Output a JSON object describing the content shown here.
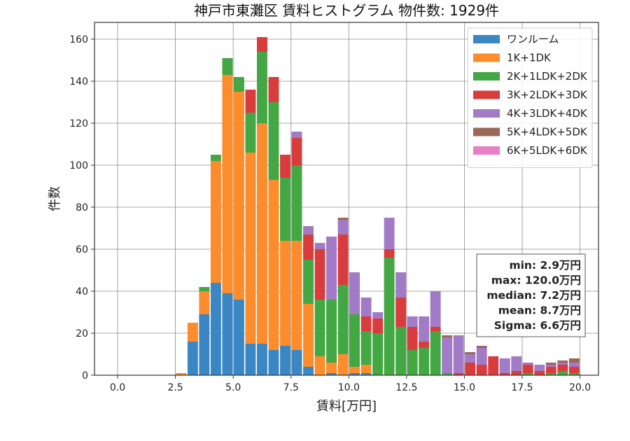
{
  "chart_data": {
    "type": "bar",
    "stacked": true,
    "title": "神戸市東灘区 賃料ヒストグラム  物件数: 1929件",
    "xlabel": "賃料[万円]",
    "ylabel": "件数",
    "xlim": [
      -1.0,
      20.8
    ],
    "ylim": [
      0,
      168
    ],
    "xticks": [
      0.0,
      2.5,
      5.0,
      7.5,
      10.0,
      12.5,
      15.0,
      17.5,
      20.0
    ],
    "xtick_labels": [
      "0.0",
      "2.5",
      "5.0",
      "7.5",
      "10.0",
      "12.5",
      "15.0",
      "17.5",
      "20.0"
    ],
    "yticks": [
      0,
      20,
      40,
      60,
      80,
      100,
      120,
      140,
      160
    ],
    "ytick_labels": [
      "0",
      "20",
      "40",
      "60",
      "80",
      "100",
      "120",
      "140",
      "160"
    ],
    "grid": true,
    "legend_position": "top-right",
    "bin_width": 0.5,
    "bins": [
      0.0,
      0.5,
      1.0,
      1.5,
      2.0,
      2.5,
      3.0,
      3.5,
      4.0,
      4.5,
      5.0,
      5.5,
      6.0,
      6.5,
      7.0,
      7.5,
      8.0,
      8.5,
      9.0,
      9.5,
      10.0,
      10.5,
      11.0,
      11.5,
      12.0,
      12.5,
      13.0,
      13.5,
      14.0,
      14.5,
      15.0,
      15.5,
      16.0,
      16.5,
      17.0,
      17.5,
      18.0,
      18.5,
      19.0,
      19.5
    ],
    "series": [
      {
        "name": "ワンルーム",
        "color": "#3a87c4",
        "values": [
          0,
          0,
          0,
          0,
          0,
          0,
          16,
          29,
          44,
          39,
          36,
          15,
          15,
          12,
          14,
          12,
          4,
          0,
          1,
          0,
          1,
          1,
          0,
          0,
          0,
          0,
          0,
          0,
          0,
          0,
          0,
          0,
          0,
          0,
          0,
          0,
          0,
          0,
          0,
          0
        ]
      },
      {
        "name": "1K+1DK",
        "color": "#fc8c2c",
        "values": [
          0,
          0,
          0,
          0,
          0,
          1,
          9,
          11,
          58,
          104,
          99,
          91,
          105,
          81,
          50,
          52,
          30,
          9,
          5,
          10,
          3,
          4,
          0,
          0,
          0,
          0,
          0,
          0,
          0,
          0,
          0,
          0,
          0,
          0,
          0,
          0,
          0,
          0,
          0,
          0
        ]
      },
      {
        "name": "2K+1LDK+2DK",
        "color": "#43a843",
        "values": [
          0,
          0,
          0,
          0,
          0,
          0,
          0,
          2,
          3,
          8,
          7,
          19,
          34,
          37,
          30,
          36,
          21,
          27,
          30,
          33,
          25,
          16,
          20,
          56,
          23,
          12,
          13,
          21,
          1,
          0,
          0,
          0,
          0,
          0,
          0,
          1,
          0,
          1,
          2,
          1
        ]
      },
      {
        "name": "3K+2LDK+3DK",
        "color": "#d93c3c",
        "values": [
          0,
          0,
          0,
          0,
          0,
          0,
          0,
          0,
          0,
          0,
          0,
          11,
          7,
          12,
          11,
          13,
          12,
          24,
          0,
          24,
          0,
          7,
          7,
          4,
          14,
          11,
          3,
          2,
          0,
          1,
          6,
          5,
          9,
          1,
          2,
          4,
          2,
          3,
          3,
          3
        ]
      },
      {
        "name": "4K+3LDK+4DK",
        "color": "#a27bc7",
        "values": [
          0,
          0,
          0,
          0,
          0,
          0,
          0,
          0,
          0,
          0,
          0,
          0,
          0,
          0,
          0,
          3,
          4,
          3,
          30,
          7,
          20,
          9,
          3,
          15,
          12,
          5,
          12,
          17,
          17,
          18,
          4,
          8,
          0,
          7,
          7,
          1,
          3,
          1,
          1,
          2
        ]
      },
      {
        "name": "5K+4LDK+5DK",
        "color": "#9a6858",
        "values": [
          0,
          0,
          0,
          0,
          0,
          0,
          0,
          0,
          0,
          0,
          0,
          0,
          0,
          0,
          0,
          0,
          0,
          0,
          0,
          1,
          0,
          0,
          0,
          0,
          0,
          0,
          0,
          0,
          1,
          0,
          1,
          1,
          0,
          0,
          0,
          0,
          0,
          1,
          1,
          2
        ]
      },
      {
        "name": "6K+5LDK+6DK",
        "color": "#e880c8",
        "values": [
          0,
          0,
          0,
          0,
          0,
          0,
          0,
          0,
          0,
          0,
          0,
          0,
          0,
          0,
          0,
          0,
          0,
          0,
          0,
          0,
          0,
          0,
          0,
          0,
          0,
          0,
          0,
          0,
          0,
          0,
          0,
          0,
          0,
          0,
          0,
          0,
          0,
          0,
          0,
          0
        ]
      }
    ],
    "annotation": [
      "min: 2.9万円",
      "max: 120.0万円",
      "median: 7.2万円",
      "mean: 8.7万円",
      "Sigma: 6.6万円"
    ]
  }
}
